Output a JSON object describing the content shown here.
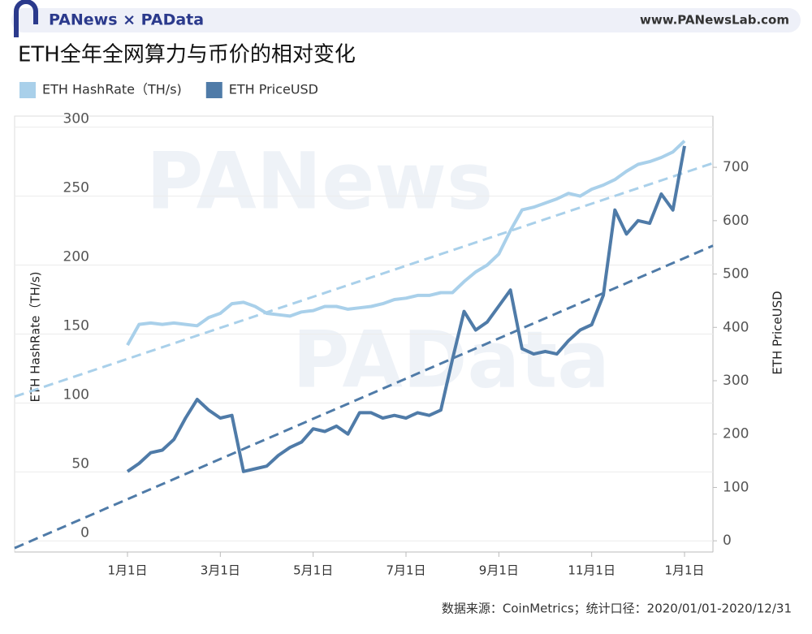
{
  "header": {
    "brand": "PANews × PAData",
    "site": "www.PANewsLab.com"
  },
  "footnote": "数据来源：CoinMetrics；统计口径：2020/01/01-2020/12/31",
  "watermarks": [
    "PANews",
    "PAData"
  ],
  "chart_data": {
    "type": "line",
    "title": "ETH全年全网算力与币价的相对变化",
    "categories": [
      "1月1日",
      null,
      null,
      null,
      null,
      null,
      null,
      null,
      "3月1日",
      null,
      null,
      null,
      null,
      null,
      null,
      null,
      "5月1日",
      null,
      null,
      null,
      null,
      null,
      null,
      null,
      "7月1日",
      null,
      null,
      null,
      null,
      null,
      null,
      null,
      "9月1日",
      null,
      null,
      null,
      null,
      null,
      null,
      null,
      "11月1日",
      null,
      null,
      null,
      null,
      null,
      null,
      null,
      "1月1日"
    ],
    "series": [
      {
        "name": "ETH HashRate（TH/s)",
        "color": "#a9d0ea",
        "axis": "y",
        "values": [
          142,
          157,
          158,
          157,
          158,
          157,
          156,
          162,
          165,
          172,
          173,
          170,
          165,
          164,
          163,
          166,
          167,
          170,
          170,
          168,
          169,
          170,
          172,
          175,
          176,
          178,
          178,
          180,
          180,
          188,
          195,
          200,
          208,
          225,
          240,
          242,
          245,
          248,
          252,
          250,
          255,
          258,
          262,
          268,
          273,
          275,
          278,
          282,
          290
        ],
        "trend": [
          132,
          267
        ]
      },
      {
        "name": "ETH PriceUSD",
        "color": "#4f7ba8",
        "axis": "y2",
        "values": [
          130,
          145,
          165,
          170,
          190,
          230,
          265,
          245,
          230,
          235,
          130,
          135,
          140,
          160,
          175,
          185,
          210,
          205,
          215,
          200,
          240,
          240,
          230,
          235,
          230,
          240,
          235,
          245,
          340,
          430,
          395,
          410,
          440,
          470,
          360,
          350,
          355,
          350,
          375,
          395,
          405,
          460,
          620,
          575,
          600,
          595,
          650,
          620,
          740
        ],
        "trend": [
          78,
          530
        ]
      }
    ],
    "ylabel": "ETH HashRate（TH/s)",
    "y2label": "ETH PriceUSD",
    "ylim": [
      -8,
      308
    ],
    "yticks": [
      0,
      50,
      100,
      150,
      200,
      250,
      300
    ],
    "y2lim": [
      -21,
      796
    ],
    "y2ticks": [
      0,
      100,
      200,
      300,
      400,
      500,
      600,
      700
    ],
    "grid": true
  }
}
